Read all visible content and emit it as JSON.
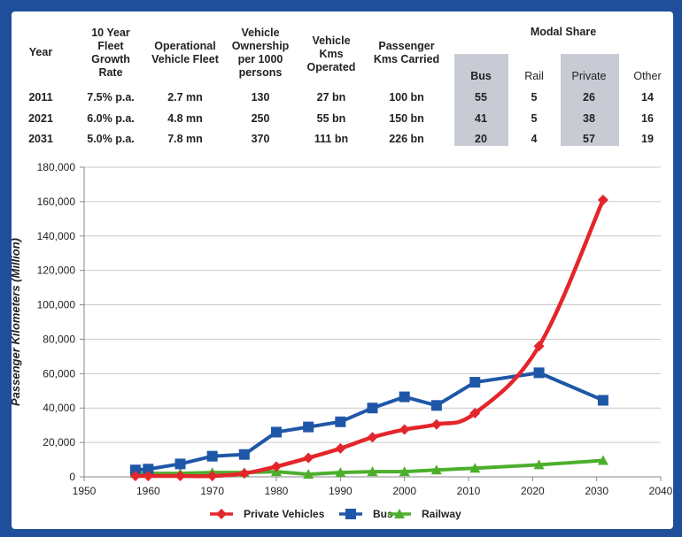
{
  "table": {
    "headers": {
      "year": [
        "Year"
      ],
      "growth": [
        "10 Year",
        "Fleet",
        "Growth",
        "Rate"
      ],
      "fleet": [
        "Operational",
        "Vehicle Fleet"
      ],
      "ownership": [
        "Vehicle",
        "Ownership",
        "per 1000",
        "persons"
      ],
      "kms": [
        "Vehicle",
        "Kms",
        "Operated"
      ],
      "pkm": [
        "Passenger",
        "Kms Carried"
      ],
      "modal": "Modal Share",
      "bus": "Bus",
      "rail": "Rail",
      "private": "Private",
      "other": "Other"
    },
    "rows": [
      {
        "year": "2011",
        "growth": "7.5% p.a.",
        "fleet": "2.7 mn",
        "ownership": "130",
        "kms": "27 bn",
        "pkm": "100 bn",
        "bus": "55",
        "rail": "5",
        "private": "26",
        "other": "14"
      },
      {
        "year": "2021",
        "growth": "6.0% p.a.",
        "fleet": "4.8 mn",
        "ownership": "250",
        "kms": "55 bn",
        "pkm": "150 bn",
        "bus": "41",
        "rail": "5",
        "private": "38",
        "other": "16"
      },
      {
        "year": "2031",
        "growth": "5.0% p.a.",
        "fleet": "7.8 mn",
        "ownership": "370",
        "kms": "111 bn",
        "pkm": "226 bn",
        "bus": "20",
        "rail": "4",
        "private": "57",
        "other": "19"
      }
    ],
    "highlight_color": "#c8cbd3"
  },
  "chart_data": {
    "type": "line",
    "ylabel": "Passenger Kilometers (Million)",
    "xlim": [
      1950,
      2040
    ],
    "ylim": [
      0,
      180000
    ],
    "xticks": [
      "1950",
      "1960",
      "1970",
      "1980",
      "1990",
      "2000",
      "2010",
      "2020",
      "2030",
      "2040"
    ],
    "yticks": [
      "0",
      "20,000",
      "40,000",
      "60,000",
      "80,000",
      "100,000",
      "120,000",
      "140,000",
      "160,000",
      "180,000"
    ],
    "grid": "horizontal",
    "legend": "bottom",
    "series": [
      {
        "name": "Private Vehicles",
        "color": "#e3262b",
        "marker": "diamond",
        "smooth": true,
        "x": [
          1958,
          1960,
          1965,
          1970,
          1975,
          1980,
          1985,
          1990,
          1995,
          2000,
          2005,
          2011,
          2021,
          2031
        ],
        "y": [
          500,
          500,
          500,
          500,
          2000,
          6000,
          11000,
          16500,
          23000,
          27500,
          30500,
          37000,
          76000,
          161000
        ]
      },
      {
        "name": "Bus",
        "color": "#1f57a8",
        "marker": "square",
        "smooth": false,
        "x": [
          1958,
          1960,
          1965,
          1970,
          1975,
          1980,
          1985,
          1990,
          1995,
          2000,
          2005,
          2011,
          2021,
          2031
        ],
        "y": [
          4000,
          4500,
          7500,
          12000,
          13000,
          26000,
          29000,
          32000,
          40000,
          46500,
          41500,
          55000,
          60500,
          44500
        ]
      },
      {
        "name": "Railway",
        "color": "#4caf2c",
        "marker": "triangle",
        "smooth": false,
        "x": [
          1958,
          1960,
          1965,
          1970,
          1975,
          1980,
          1985,
          1990,
          1995,
          2000,
          2005,
          2011,
          2021,
          2031
        ],
        "y": [
          2000,
          2000,
          2000,
          2500,
          2500,
          3000,
          1500,
          2500,
          3000,
          3000,
          4000,
          5000,
          7000,
          9500
        ]
      }
    ]
  }
}
